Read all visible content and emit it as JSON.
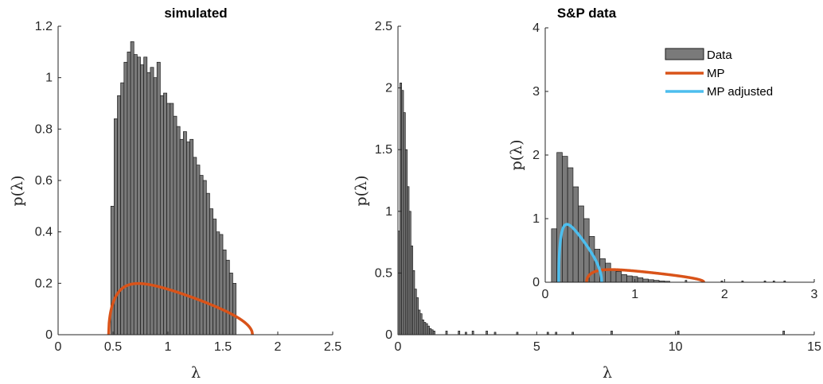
{
  "colors": {
    "bar_fill": "#7a7a7a",
    "bar_stroke": "#1a1a1a",
    "mp": "#d95319",
    "mp_adjusted": "#4dbeee",
    "axis": "#262626"
  },
  "chart_data": [
    {
      "type": "bar",
      "title": "simulated",
      "xlabel": "λ",
      "ylabel": "p(λ)",
      "xlim": [
        0,
        2.5
      ],
      "ylim": [
        0,
        1.2
      ],
      "xticks": [
        0,
        0.5,
        1,
        1.5,
        2,
        2.5
      ],
      "xtick_labels": [
        "0",
        "0.5",
        "1",
        "1.5",
        "2",
        "2.5"
      ],
      "yticks": [
        0,
        0.2,
        0.4,
        0.6,
        0.8,
        1,
        1.2
      ],
      "ytick_labels": [
        "0",
        "0.2",
        "0.4",
        "0.6",
        "0.8",
        "1",
        "1.2"
      ],
      "bin_start": 0.48,
      "bin_width": 0.03,
      "values": [
        0.5,
        0.84,
        0.93,
        0.98,
        1.06,
        1.1,
        1.14,
        1.09,
        1.08,
        1.05,
        1.08,
        1.02,
        1.04,
        1.0,
        1.06,
        0.93,
        0.94,
        0.9,
        0.9,
        0.85,
        0.81,
        0.76,
        0.79,
        0.75,
        0.76,
        0.69,
        0.66,
        0.62,
        0.6,
        0.55,
        0.49,
        0.45,
        0.4,
        0.39,
        0.33,
        0.29,
        0.24,
        0.2
      ],
      "series": [
        {
          "name": "MP",
          "distribution": "marchenko-pastur",
          "lambda_min": 0.46,
          "lambda_max": 1.77,
          "ratio": 0.58,
          "variance": 1.0
        }
      ]
    },
    {
      "type": "bar",
      "title": "",
      "xlabel": "λ",
      "ylabel": "p(λ)",
      "xlim": [
        0,
        15
      ],
      "ylim": [
        0,
        2.5
      ],
      "xticks": [
        0,
        5,
        10,
        15
      ],
      "xtick_labels": [
        "0",
        "5",
        "10",
        "15"
      ],
      "yticks": [
        0,
        0.5,
        1,
        1.5,
        2,
        2.5
      ],
      "ytick_labels": [
        "0",
        "0.5",
        "1",
        "1.5",
        "2",
        "2.5"
      ],
      "bin_start": 0.0,
      "bin_width": 0.0667,
      "values": [
        0.84,
        2.04,
        1.98,
        1.8,
        1.5,
        1.2,
        1.0,
        0.72,
        0.52,
        0.37,
        0.3,
        0.2,
        0.17,
        0.12,
        0.1,
        0.09,
        0.07,
        0.05,
        0.04,
        0.03
      ],
      "outlier_bars": [
        {
          "x": 1.75,
          "value": 0.03
        },
        {
          "x": 2.2,
          "value": 0.03
        },
        {
          "x": 2.45,
          "value": 0.02
        },
        {
          "x": 2.7,
          "value": 0.03
        },
        {
          "x": 3.2,
          "value": 0.03
        },
        {
          "x": 3.5,
          "value": 0.02
        },
        {
          "x": 4.3,
          "value": 0.02
        },
        {
          "x": 5.4,
          "value": 0.02
        },
        {
          "x": 5.7,
          "value": 0.02
        },
        {
          "x": 6.3,
          "value": 0.02
        },
        {
          "x": 7.7,
          "value": 0.03
        },
        {
          "x": 10.1,
          "value": 0.03
        },
        {
          "x": 13.9,
          "value": 0.03
        }
      ]
    },
    {
      "type": "bar",
      "title": "S&P data",
      "xlabel": "",
      "ylabel": "p(λ)",
      "xlim": [
        0,
        3
      ],
      "ylim": [
        0,
        4
      ],
      "xticks": [
        0,
        1,
        2,
        3
      ],
      "xtick_labels": [
        "0",
        "1",
        "2",
        "3"
      ],
      "yticks": [
        0,
        1,
        2,
        3,
        4
      ],
      "ytick_labels": [
        "0",
        "1",
        "2",
        "3",
        "4"
      ],
      "bin_start": 0.07,
      "bin_width": 0.06,
      "values": [
        0.84,
        2.04,
        1.98,
        1.8,
        1.5,
        1.2,
        1.0,
        0.72,
        0.52,
        0.37,
        0.3,
        0.2,
        0.17,
        0.12,
        0.1,
        0.09,
        0.07,
        0.05,
        0.04,
        0.03,
        0.02,
        0.015
      ],
      "outlier_bars": [
        {
          "x": 1.57,
          "value": 0.03
        },
        {
          "x": 1.97,
          "value": 0.02
        },
        {
          "x": 2.2,
          "value": 0.02
        },
        {
          "x": 2.45,
          "value": 0.02
        },
        {
          "x": 2.55,
          "value": 0.02
        },
        {
          "x": 2.67,
          "value": 0.02
        }
      ],
      "legend": {
        "position": "top-right",
        "entries": [
          "Data",
          "MP",
          "MP adjusted"
        ]
      },
      "series": [
        {
          "name": "MP",
          "distribution": "marchenko-pastur",
          "lambda_min": 0.46,
          "lambda_max": 1.77,
          "ratio": 0.58,
          "variance": 1.0
        },
        {
          "name": "MP adjusted",
          "distribution": "marchenko-pastur",
          "lambda_min": 0.15,
          "lambda_max": 0.63,
          "ratio": 0.39,
          "variance": 0.35
        }
      ]
    }
  ]
}
